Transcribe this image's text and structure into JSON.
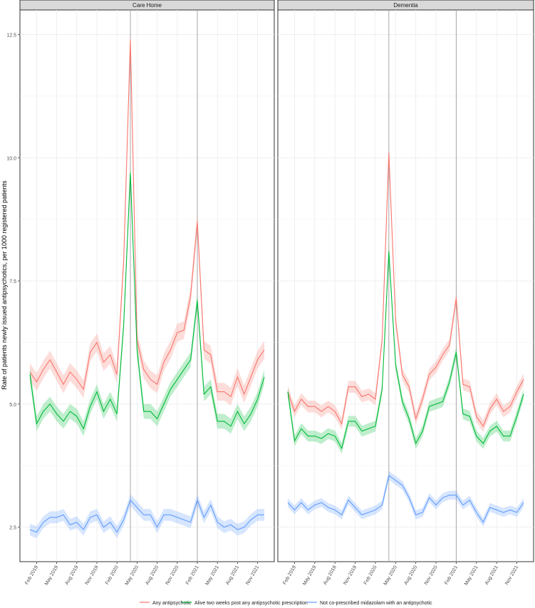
{
  "chart_data": {
    "type": "line",
    "ylabel": "Rate of patients newly issued antipsychotics, per 1000 registered patients",
    "xlabel": "",
    "ylim": [
      1.8,
      13.0
    ],
    "y_ticks": [
      {
        "value": 2.5,
        "label": "2.5"
      },
      {
        "value": 5.0,
        "label": "5.0"
      },
      {
        "value": 7.5,
        "label": "7.5"
      },
      {
        "value": 10.0,
        "label": "10.0"
      },
      {
        "value": 12.5,
        "label": "12.5"
      }
    ],
    "x": [
      "2019-01",
      "2019-02",
      "2019-03",
      "2019-04",
      "2019-05",
      "2019-06",
      "2019-07",
      "2019-08",
      "2019-09",
      "2019-10",
      "2019-11",
      "2019-12",
      "2020-01",
      "2020-02",
      "2020-03",
      "2020-04",
      "2020-05",
      "2020-06",
      "2020-07",
      "2020-08",
      "2020-09",
      "2020-10",
      "2020-11",
      "2020-12",
      "2021-01",
      "2021-02",
      "2021-03",
      "2021-04",
      "2021-05",
      "2021-06",
      "2021-07",
      "2021-08",
      "2021-09",
      "2021-10",
      "2021-11",
      "2021-12"
    ],
    "x_ticks": [
      {
        "index": 1,
        "label": "Feb 2019"
      },
      {
        "index": 4,
        "label": "May 2019"
      },
      {
        "index": 7,
        "label": "Aug 2019"
      },
      {
        "index": 10,
        "label": "Nov 2019"
      },
      {
        "index": 13,
        "label": "Feb 2020"
      },
      {
        "index": 16,
        "label": "May 2020"
      },
      {
        "index": 19,
        "label": "Aug 2020"
      },
      {
        "index": 22,
        "label": "Nov 2020"
      },
      {
        "index": 25,
        "label": "Feb 2021"
      },
      {
        "index": 28,
        "label": "May 2021"
      },
      {
        "index": 31,
        "label": "Aug 2021"
      },
      {
        "index": 34,
        "label": "Nov 2021"
      }
    ],
    "vlines": [
      15,
      25
    ],
    "grid": true,
    "legend_position": "bottom",
    "legend": [
      {
        "label": "Any antipsychotic",
        "color": "#f8766d"
      },
      {
        "label": "Alive two weeks post any antipsychotic prescription",
        "color": "#00ba38"
      },
      {
        "label": "Not co-prescribed midazolam with an antipsychotic",
        "color": "#619cff"
      }
    ],
    "panels": [
      {
        "title": "Care Home",
        "series": [
          {
            "name": "Any antipsychotic",
            "color": "#f8766d",
            "band": 0.18,
            "values": [
              5.65,
              5.45,
              5.7,
              5.9,
              5.65,
              5.4,
              5.65,
              5.5,
              5.3,
              6.05,
              6.25,
              5.85,
              6.0,
              5.6,
              7.9,
              12.4,
              6.3,
              5.7,
              5.5,
              5.4,
              5.85,
              6.1,
              6.45,
              6.5,
              7.2,
              8.7,
              6.1,
              6.0,
              5.25,
              5.25,
              5.15,
              5.55,
              5.2,
              5.55,
              5.9,
              6.1
            ]
          },
          {
            "name": "Alive two weeks post any antipsychotic prescription",
            "color": "#00ba38",
            "band": 0.15,
            "values": [
              5.6,
              4.6,
              4.85,
              5.0,
              4.8,
              4.65,
              4.85,
              4.75,
              4.5,
              4.95,
              5.25,
              4.85,
              5.1,
              4.8,
              6.6,
              9.7,
              6.1,
              4.85,
              4.85,
              4.7,
              5.0,
              5.3,
              5.5,
              5.7,
              5.9,
              7.1,
              5.2,
              5.35,
              4.65,
              4.65,
              4.55,
              4.85,
              4.6,
              4.8,
              5.1,
              5.55
            ]
          },
          {
            "name": "Not co-prescribed midazolam with an antipsychotic",
            "color": "#619cff",
            "band": 0.12,
            "values": [
              2.45,
              2.4,
              2.6,
              2.7,
              2.7,
              2.75,
              2.55,
              2.6,
              2.45,
              2.7,
              2.75,
              2.5,
              2.6,
              2.4,
              2.65,
              3.05,
              2.9,
              2.75,
              2.75,
              2.5,
              2.75,
              2.75,
              2.7,
              2.65,
              2.6,
              3.05,
              2.7,
              2.95,
              2.6,
              2.5,
              2.55,
              2.45,
              2.5,
              2.65,
              2.75,
              2.75
            ]
          }
        ]
      },
      {
        "title": "Dementia",
        "series": [
          {
            "name": "Any antipsychotic",
            "color": "#f8766d",
            "band": 0.12,
            "values": [
              5.25,
              4.85,
              5.1,
              4.95,
              4.95,
              4.85,
              4.95,
              4.85,
              4.6,
              5.35,
              5.35,
              5.15,
              5.2,
              5.1,
              6.3,
              10.1,
              6.7,
              5.6,
              5.35,
              4.7,
              5.1,
              5.6,
              5.75,
              6.0,
              6.2,
              7.15,
              5.4,
              5.35,
              4.75,
              4.55,
              4.9,
              5.1,
              4.85,
              4.95,
              5.25,
              5.5
            ]
          },
          {
            "name": "Alive two weeks post any antipsychotic prescription",
            "color": "#00ba38",
            "band": 0.11,
            "values": [
              5.25,
              4.25,
              4.5,
              4.35,
              4.35,
              4.3,
              4.4,
              4.35,
              4.1,
              4.65,
              4.65,
              4.45,
              4.5,
              4.55,
              5.3,
              8.1,
              5.8,
              5.05,
              4.7,
              4.2,
              4.45,
              4.95,
              5.0,
              5.05,
              5.45,
              6.05,
              4.8,
              4.75,
              4.35,
              4.2,
              4.45,
              4.55,
              4.35,
              4.35,
              4.75,
              5.2
            ]
          },
          {
            "name": "Not co-prescribed midazolam with an antipsychotic",
            "color": "#619cff",
            "band": 0.09,
            "values": [
              3.0,
              2.85,
              3.0,
              2.85,
              2.95,
              3.0,
              2.9,
              2.85,
              2.75,
              3.05,
              2.9,
              2.75,
              2.8,
              2.85,
              2.95,
              3.55,
              3.45,
              3.35,
              3.1,
              2.75,
              2.8,
              3.1,
              2.95,
              3.1,
              3.15,
              3.15,
              2.95,
              3.05,
              2.8,
              2.6,
              2.9,
              2.85,
              2.8,
              2.85,
              2.8,
              3.0
            ]
          }
        ]
      }
    ]
  }
}
